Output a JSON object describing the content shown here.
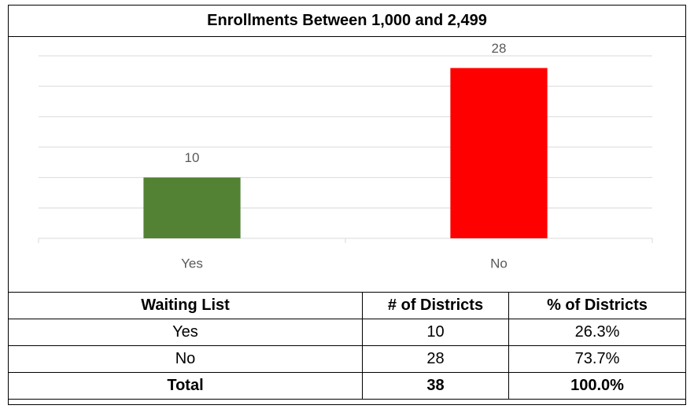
{
  "chart_data": {
    "type": "bar",
    "title": "Enrollments Between 1,000 and 2,499",
    "categories": [
      "Yes",
      "No"
    ],
    "values": [
      10,
      28
    ],
    "colors": [
      "#548235",
      "#ff0000"
    ],
    "ylim": [
      0,
      30
    ],
    "yticks": [
      0,
      5,
      10,
      15,
      20,
      25,
      30
    ],
    "grid": true
  },
  "table": {
    "header": [
      "Waiting List",
      "# of Districts",
      "% of Districts"
    ],
    "rows": [
      [
        "Yes",
        "10",
        "26.3%"
      ],
      [
        "No",
        "28",
        "73.7%"
      ]
    ],
    "total": [
      "Total",
      "38",
      "100.0%"
    ]
  }
}
